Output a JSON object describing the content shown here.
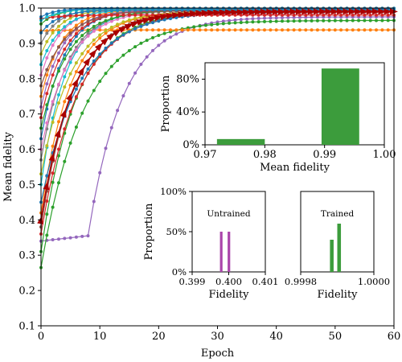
{
  "chart_data": [
    {
      "id": "main",
      "type": "line",
      "xlabel": "Epoch",
      "ylabel": "Mean fidelity",
      "xlim": [
        0,
        60
      ],
      "ylim": [
        0.1,
        1.0
      ],
      "xticks": [
        "0",
        "10",
        "20",
        "30",
        "40",
        "50",
        "60"
      ],
      "yticks": [
        "0.1",
        "0.2",
        "0.3",
        "0.4",
        "0.5",
        "0.6",
        "0.7",
        "0.8",
        "0.9",
        "1.0"
      ],
      "grid": false,
      "series": [
        {
          "color": "#9467bd",
          "start": 0.34,
          "end": 0.975,
          "rate": 0.17,
          "kink_at": 8,
          "kink_value": 0.355
        },
        {
          "color": "#2ca02c",
          "start": 0.265,
          "end": 0.965,
          "rate": 0.14
        },
        {
          "color": "#2ca02c",
          "start": 0.31,
          "end": 0.99,
          "rate": 0.17
        },
        {
          "color": "#d62728",
          "start": 0.36,
          "end": 0.99,
          "rate": 0.16
        },
        {
          "color": "#8c564b",
          "start": 0.38,
          "end": 0.995,
          "rate": 0.18
        },
        {
          "color": "#ff7f0e",
          "start": 0.935,
          "end": 0.938,
          "rate": 0.3
        },
        {
          "color": "#ff7f0e",
          "start": 0.42,
          "end": 0.992,
          "rate": 0.2
        },
        {
          "color": "#1f77b4",
          "start": 0.45,
          "end": 0.99,
          "rate": 0.15
        },
        {
          "color": "#17becf",
          "start": 0.5,
          "end": 0.995,
          "rate": 0.24
        },
        {
          "color": "#bcbd22",
          "start": 0.53,
          "end": 0.993,
          "rate": 0.19
        },
        {
          "color": "#7f7f7f",
          "start": 0.57,
          "end": 0.996,
          "rate": 0.23
        },
        {
          "color": "#e377c2",
          "start": 0.6,
          "end": 0.994,
          "rate": 0.21
        },
        {
          "color": "#1f77b4",
          "start": 0.63,
          "end": 0.997,
          "rate": 0.26
        },
        {
          "color": "#2ca02c",
          "start": 0.66,
          "end": 0.994,
          "rate": 0.22
        },
        {
          "color": "#d62728",
          "start": 0.69,
          "end": 0.996,
          "rate": 0.25
        },
        {
          "color": "#9467bd",
          "start": 0.72,
          "end": 0.995,
          "rate": 0.27
        },
        {
          "color": "#ff7f0e",
          "start": 0.75,
          "end": 0.997,
          "rate": 0.28
        },
        {
          "color": "#8c564b",
          "start": 0.78,
          "end": 0.993,
          "rate": 0.24
        },
        {
          "color": "#e377c2",
          "start": 0.81,
          "end": 0.998,
          "rate": 0.3
        },
        {
          "color": "#17becf",
          "start": 0.84,
          "end": 0.996,
          "rate": 0.29
        },
        {
          "color": "#bcbd22",
          "start": 0.87,
          "end": 0.997,
          "rate": 0.32
        },
        {
          "color": "#7f7f7f",
          "start": 0.9,
          "end": 0.999,
          "rate": 0.34
        },
        {
          "color": "#1f77b4",
          "start": 0.93,
          "end": 0.995,
          "rate": 0.33
        },
        {
          "color": "#2ca02c",
          "start": 0.955,
          "end": 0.999,
          "rate": 0.35
        },
        {
          "color": "#d62728",
          "start": 0.97,
          "end": 0.98,
          "rate": 0.3
        },
        {
          "color": "#17becf",
          "start": 0.965,
          "end": 0.998,
          "rate": 0.35
        },
        {
          "color": "#1f77b4",
          "start": 0.975,
          "end": 0.999,
          "rate": 0.4
        }
      ],
      "highlight_series": {
        "color": "#aa0000",
        "start": 0.4,
        "end": 0.99,
        "rate": 0.18,
        "marker": "triangle"
      }
    },
    {
      "id": "inset_mean_fidelity",
      "type": "bar",
      "xlabel": "Mean fidelity",
      "ylabel": "Proportion",
      "xlim": [
        0.97,
        1.0
      ],
      "ylim": [
        0,
        1.0
      ],
      "xticks": [
        "0.97",
        "0.98",
        "0.99",
        "1.00"
      ],
      "yticks": [
        "0%",
        "40%",
        "80%"
      ],
      "bars": [
        {
          "x0": 0.972,
          "x1": 0.98,
          "value": 0.07,
          "color": "#3c9c3c"
        },
        {
          "x0": 0.9895,
          "x1": 0.9958,
          "value": 0.93,
          "color": "#3c9c3c"
        }
      ]
    },
    {
      "id": "inset_untrained",
      "type": "bar",
      "annotation": "Untrained",
      "xlabel": "Fidelity",
      "ylabel": "Proportion",
      "xlim": [
        0.399,
        0.401
      ],
      "ylim": [
        0,
        1.0
      ],
      "xticks": [
        "0.399",
        "0.400",
        "0.401"
      ],
      "yticks": [
        "0%",
        "50%",
        "100%"
      ],
      "bars": [
        {
          "x0": 0.39976,
          "x1": 0.39983,
          "value": 0.5,
          "color": "#aa44aa"
        },
        {
          "x0": 0.39997,
          "x1": 0.40004,
          "value": 0.5,
          "color": "#aa44aa"
        }
      ]
    },
    {
      "id": "inset_trained",
      "type": "bar",
      "annotation": "Trained",
      "xlabel": "Fidelity",
      "xlim": [
        0.9998,
        1.0
      ],
      "ylim": [
        0,
        1.0
      ],
      "xticks": [
        "0.9998",
        "1.0000"
      ],
      "bars": [
        {
          "x0": 0.99988,
          "x1": 0.99989,
          "value": 0.4,
          "color": "#3c9c3c"
        },
        {
          "x0": 0.9999,
          "x1": 0.99991,
          "value": 0.6,
          "color": "#3c9c3c"
        }
      ]
    }
  ]
}
